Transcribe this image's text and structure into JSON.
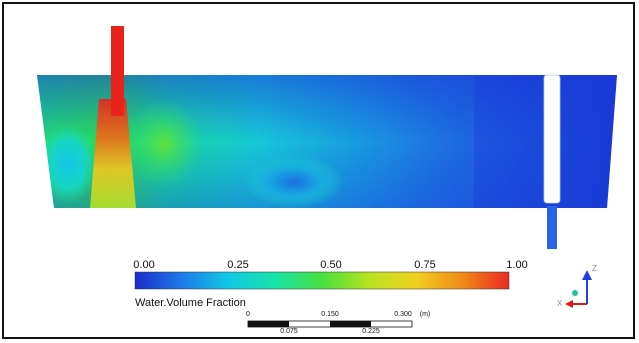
{
  "legend": {
    "ticks": [
      "0.00",
      "0.25",
      "0.50",
      "0.75",
      "1.00"
    ],
    "title": "Water.Volume Fraction",
    "colors": [
      "#1a2cc8",
      "#1c7ae8",
      "#12c8e6",
      "#18e3a6",
      "#48e040",
      "#b6e320",
      "#f0d020",
      "#f08a18",
      "#e82a22"
    ]
  },
  "scale_bar": {
    "top_labels": [
      "0",
      "0.150",
      "0.300"
    ],
    "bottom_labels": [
      "0.075",
      "0.225"
    ],
    "unit": "(m)"
  },
  "axes_triad": {
    "z_label": "Z",
    "x_label": "X",
    "colors": {
      "z": "#1f3fe0",
      "x": "#e01818",
      "y": "#22c49a"
    }
  },
  "field_colors": {
    "inlet": "#e8231c",
    "outlet_pipe": "#2b62ea",
    "baffle": "#ffffff",
    "deep_blue": "#1a3ad8"
  }
}
